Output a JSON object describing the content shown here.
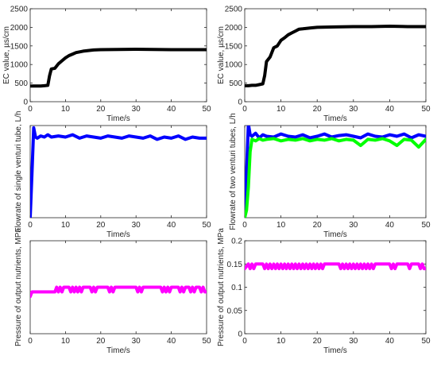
{
  "chart_data": [
    {
      "type": "line",
      "xlabel": "Time/s",
      "ylabel": "EC value, µs/cm",
      "xlim": [
        0,
        50
      ],
      "ylim": [
        0,
        2500
      ],
      "xticks": [
        0,
        10,
        20,
        30,
        40,
        50
      ],
      "yticks": [
        0,
        500,
        1000,
        1500,
        2000,
        2500
      ],
      "grid": false,
      "series": [
        {
          "color": "#000000",
          "x": [
            0,
            1,
            2,
            3,
            4,
            5,
            5.5,
            6,
            7,
            8,
            9,
            10,
            11,
            12,
            13,
            14,
            15,
            16,
            18,
            20,
            25,
            30,
            35,
            40,
            45,
            50
          ],
          "y": [
            420,
            420,
            420,
            420,
            430,
            440,
            700,
            880,
            900,
            1020,
            1100,
            1180,
            1240,
            1280,
            1320,
            1340,
            1360,
            1370,
            1390,
            1400,
            1405,
            1410,
            1405,
            1400,
            1400,
            1400
          ]
        }
      ]
    },
    {
      "type": "line",
      "xlabel": "Time/s",
      "ylabel": "EC value, µs/cm",
      "xlim": [
        0,
        50
      ],
      "ylim": [
        0,
        2500
      ],
      "xticks": [
        0,
        10,
        20,
        30,
        40,
        50
      ],
      "yticks": [
        0,
        500,
        1000,
        1500,
        2000,
        2500
      ],
      "grid": false,
      "series": [
        {
          "color": "#000000",
          "x": [
            0,
            1,
            2,
            3,
            4,
            5,
            5.5,
            6,
            7,
            8,
            9,
            10,
            11,
            12,
            13,
            14,
            15,
            16,
            18,
            20,
            25,
            30,
            35,
            40,
            45,
            50
          ],
          "y": [
            430,
            430,
            440,
            440,
            460,
            480,
            700,
            1080,
            1200,
            1450,
            1500,
            1650,
            1720,
            1800,
            1850,
            1900,
            1950,
            1960,
            1980,
            2000,
            2010,
            2020,
            2020,
            2030,
            2020,
            2020
          ]
        }
      ]
    },
    {
      "type": "line",
      "xlabel": "Time/s",
      "ylabel": "Flowrate of single venturi tube, L/h",
      "xlim": [
        0,
        50
      ],
      "ylim": [
        0,
        800
      ],
      "xticks": [
        0,
        10,
        20,
        30,
        40,
        50
      ],
      "yticks": [],
      "grid": false,
      "series": [
        {
          "color": "#0000ff",
          "x": [
            0,
            0.5,
            1,
            1.5,
            2,
            3,
            4,
            5,
            6,
            8,
            10,
            12,
            14,
            16,
            18,
            20,
            22,
            24,
            26,
            28,
            30,
            32,
            34,
            36,
            38,
            40,
            42,
            44,
            46,
            48,
            50
          ],
          "y": [
            0,
            380,
            780,
            700,
            690,
            710,
            700,
            720,
            700,
            710,
            700,
            720,
            690,
            710,
            700,
            690,
            710,
            700,
            690,
            710,
            700,
            690,
            710,
            680,
            700,
            690,
            710,
            680,
            700,
            690,
            690
          ]
        }
      ]
    },
    {
      "type": "line",
      "xlabel": "Time/s",
      "ylabel": "Flowrate of two venturi tubes, L/h",
      "xlim": [
        0,
        50
      ],
      "ylim": [
        0,
        600
      ],
      "xticks": [
        0,
        10,
        20,
        30,
        40,
        50
      ],
      "yticks": [],
      "grid": false,
      "series": [
        {
          "color": "#0000ff",
          "x": [
            0,
            0.5,
            1,
            1.5,
            2,
            3,
            4,
            5,
            6,
            8,
            10,
            12,
            14,
            16,
            18,
            20,
            22,
            24,
            26,
            28,
            30,
            32,
            34,
            36,
            38,
            40,
            42,
            44,
            46,
            48,
            50
          ],
          "y": [
            0,
            300,
            610,
            540,
            530,
            550,
            520,
            540,
            530,
            525,
            545,
            530,
            525,
            540,
            520,
            530,
            545,
            525,
            535,
            540,
            530,
            520,
            545,
            530,
            525,
            540,
            530,
            545,
            520,
            540,
            530
          ]
        },
        {
          "color": "#00ff00",
          "x": [
            0,
            0.5,
            1,
            1.5,
            2,
            3,
            4,
            5,
            6,
            8,
            10,
            12,
            14,
            16,
            18,
            20,
            22,
            24,
            26,
            28,
            30,
            32,
            34,
            36,
            38,
            40,
            42,
            44,
            46,
            48,
            50
          ],
          "y": [
            0,
            50,
            200,
            430,
            510,
            500,
            515,
            505,
            510,
            515,
            500,
            510,
            505,
            515,
            500,
            510,
            505,
            515,
            500,
            510,
            505,
            470,
            510,
            505,
            515,
            500,
            470,
            510,
            505,
            460,
            510
          ]
        }
      ]
    },
    {
      "type": "line",
      "xlabel": "Time/s",
      "ylabel": "Pressure of output nutrients, MPa",
      "xlim": [
        0,
        50
      ],
      "ylim": [
        0,
        0.2
      ],
      "xticks": [
        0,
        10,
        20,
        30,
        40,
        50
      ],
      "yticks": [],
      "grid": false,
      "series": [
        {
          "color": "#ff00ff",
          "x": [
            0,
            0.5,
            1,
            7,
            7.5,
            8,
            8.5,
            9,
            9.5,
            10,
            11,
            11.5,
            12,
            12.5,
            13,
            13.5,
            14,
            14.5,
            15,
            16,
            17,
            17.5,
            18,
            18.5,
            19,
            20,
            21,
            22,
            22.5,
            23,
            23.5,
            24,
            25,
            26,
            27,
            28,
            29,
            30,
            30.5,
            31,
            31.5,
            32,
            33,
            34,
            35,
            36,
            37,
            37.5,
            38,
            38.5,
            39,
            39.5,
            40,
            41,
            42,
            42.5,
            43,
            43.5,
            44,
            45,
            45.5,
            46,
            46.5,
            47,
            48,
            48.5,
            49,
            49.5,
            50
          ],
          "y": [
            0.08,
            0.09,
            0.09,
            0.09,
            0.1,
            0.09,
            0.1,
            0.09,
            0.1,
            0.1,
            0.1,
            0.09,
            0.1,
            0.09,
            0.1,
            0.09,
            0.1,
            0.09,
            0.1,
            0.1,
            0.1,
            0.09,
            0.1,
            0.09,
            0.1,
            0.1,
            0.1,
            0.1,
            0.09,
            0.1,
            0.09,
            0.1,
            0.1,
            0.1,
            0.1,
            0.1,
            0.1,
            0.1,
            0.09,
            0.1,
            0.09,
            0.1,
            0.1,
            0.1,
            0.1,
            0.1,
            0.1,
            0.09,
            0.1,
            0.09,
            0.1,
            0.09,
            0.1,
            0.1,
            0.1,
            0.09,
            0.1,
            0.09,
            0.1,
            0.1,
            0.09,
            0.1,
            0.09,
            0.1,
            0.1,
            0.09,
            0.1,
            0.09,
            0.09
          ]
        }
      ]
    },
    {
      "type": "line",
      "xlabel": "Time/s",
      "ylabel": "Pressure of output nutrients, MPa",
      "xlim": [
        0,
        50
      ],
      "ylim": [
        0,
        0.2
      ],
      "xticks": [
        0,
        10,
        20,
        30,
        40,
        50
      ],
      "yticks": [
        0,
        0.05,
        0.1,
        0.15,
        0.2
      ],
      "grid": false,
      "series": [
        {
          "color": "#ff00ff",
          "x": [
            0,
            1,
            1.5,
            2,
            2.5,
            3,
            4,
            5,
            5.5,
            6,
            6.5,
            7,
            7.5,
            8,
            8.5,
            9,
            9.5,
            10,
            10.5,
            11,
            11.5,
            12,
            12.5,
            13,
            13.5,
            14,
            14.5,
            15,
            15.5,
            16,
            16.5,
            17,
            17.5,
            18,
            18.5,
            19,
            19.5,
            20,
            20.5,
            21,
            21.5,
            22,
            23,
            24,
            25,
            26,
            26.5,
            27,
            27.5,
            28,
            28.5,
            29,
            29.5,
            30,
            30.5,
            31,
            31.5,
            32,
            32.5,
            33,
            33.5,
            34,
            34.5,
            35,
            35.5,
            36,
            37,
            38,
            39,
            40,
            40.5,
            41,
            41.5,
            42,
            43,
            44,
            45,
            45.5,
            46,
            47,
            48,
            48.5,
            49,
            49.5,
            50
          ],
          "y": [
            0.14,
            0.15,
            0.14,
            0.15,
            0.14,
            0.15,
            0.15,
            0.15,
            0.14,
            0.15,
            0.14,
            0.15,
            0.14,
            0.15,
            0.14,
            0.15,
            0.14,
            0.15,
            0.14,
            0.15,
            0.14,
            0.15,
            0.14,
            0.15,
            0.14,
            0.15,
            0.14,
            0.15,
            0.14,
            0.15,
            0.14,
            0.15,
            0.14,
            0.15,
            0.14,
            0.15,
            0.14,
            0.15,
            0.14,
            0.15,
            0.14,
            0.15,
            0.15,
            0.15,
            0.15,
            0.15,
            0.14,
            0.15,
            0.14,
            0.15,
            0.14,
            0.15,
            0.14,
            0.15,
            0.14,
            0.15,
            0.14,
            0.15,
            0.14,
            0.15,
            0.14,
            0.15,
            0.14,
            0.15,
            0.14,
            0.15,
            0.15,
            0.15,
            0.15,
            0.15,
            0.14,
            0.15,
            0.14,
            0.15,
            0.15,
            0.15,
            0.15,
            0.14,
            0.15,
            0.15,
            0.15,
            0.14,
            0.15,
            0.14,
            0.14
          ]
        }
      ]
    }
  ]
}
